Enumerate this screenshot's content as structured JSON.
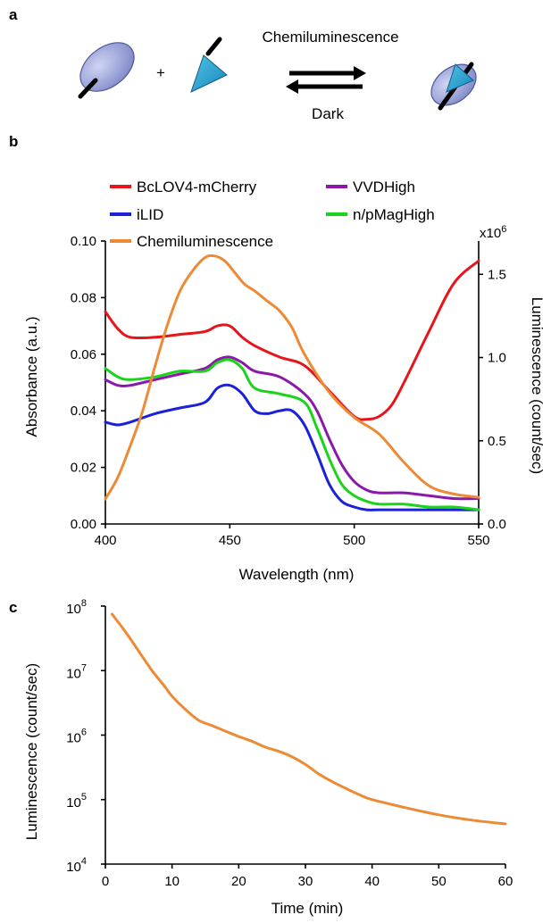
{
  "panel_a": {
    "label": "a",
    "plus": "+",
    "forward_label": "Chemiluminescence",
    "reverse_label": "Dark"
  },
  "chart_data": [
    {
      "panel": "b",
      "type": "line",
      "xlabel": "Wavelength (nm)",
      "ylabel": "Absorbance (a.u.)",
      "y2label": "Luminescence (count/sec)",
      "y2_exponent_label": "x10",
      "y2_exponent_sup": "6",
      "xlim": [
        400,
        550
      ],
      "ylim": [
        0,
        0.1
      ],
      "y2lim": [
        0,
        1.7
      ],
      "xticks": [
        "400",
        "450",
        "500",
        "550"
      ],
      "yticks": [
        "0.00",
        "0.02",
        "0.04",
        "0.06",
        "0.08",
        "0.10"
      ],
      "y2ticks": [
        "0.0",
        "0.5",
        "1.0",
        "1.5"
      ],
      "legend_position": "top",
      "series": [
        {
          "name": "BcLOV4-mCherry",
          "color": "#e8141c",
          "axis": "left",
          "x": [
            400,
            405,
            410,
            420,
            430,
            440,
            445,
            450,
            455,
            460,
            470,
            480,
            490,
            500,
            505,
            510,
            515,
            520,
            530,
            540,
            550
          ],
          "y": [
            0.075,
            0.069,
            0.066,
            0.066,
            0.067,
            0.068,
            0.07,
            0.07,
            0.066,
            0.063,
            0.059,
            0.056,
            0.047,
            0.038,
            0.037,
            0.038,
            0.042,
            0.05,
            0.068,
            0.085,
            0.093
          ]
        },
        {
          "name": "VVDHigh",
          "color": "#8b18a8",
          "axis": "left",
          "x": [
            400,
            405,
            410,
            420,
            430,
            440,
            445,
            450,
            455,
            460,
            470,
            480,
            485,
            490,
            495,
            500,
            505,
            510,
            520,
            530,
            540,
            550
          ],
          "y": [
            0.051,
            0.049,
            0.049,
            0.051,
            0.053,
            0.055,
            0.058,
            0.059,
            0.057,
            0.054,
            0.052,
            0.046,
            0.04,
            0.03,
            0.021,
            0.015,
            0.012,
            0.011,
            0.011,
            0.01,
            0.009,
            0.009
          ]
        },
        {
          "name": "iLID",
          "color": "#1a21d6",
          "axis": "left",
          "x": [
            400,
            405,
            410,
            420,
            430,
            440,
            445,
            450,
            455,
            460,
            465,
            470,
            475,
            480,
            485,
            490,
            495,
            500,
            505,
            510,
            520,
            530,
            540,
            550
          ],
          "y": [
            0.036,
            0.035,
            0.036,
            0.039,
            0.041,
            0.043,
            0.048,
            0.049,
            0.046,
            0.04,
            0.039,
            0.04,
            0.04,
            0.035,
            0.025,
            0.014,
            0.008,
            0.006,
            0.005,
            0.005,
            0.005,
            0.005,
            0.005,
            0.005
          ]
        },
        {
          "name": "n/pMagHigh",
          "color": "#19d419",
          "axis": "left",
          "x": [
            400,
            405,
            410,
            420,
            430,
            440,
            445,
            450,
            455,
            460,
            470,
            480,
            485,
            490,
            495,
            500,
            505,
            510,
            520,
            530,
            540,
            550
          ],
          "y": [
            0.055,
            0.052,
            0.051,
            0.052,
            0.054,
            0.054,
            0.057,
            0.058,
            0.055,
            0.048,
            0.046,
            0.043,
            0.034,
            0.023,
            0.014,
            0.01,
            0.008,
            0.007,
            0.007,
            0.006,
            0.006,
            0.005
          ]
        },
        {
          "name": "Chemiluminescence",
          "color": "#ed8a35",
          "axis": "right",
          "x": [
            400,
            405,
            410,
            415,
            420,
            425,
            430,
            435,
            440,
            444,
            448,
            452,
            456,
            460,
            465,
            470,
            475,
            480,
            490,
            500,
            510,
            520,
            530,
            540,
            550
          ],
          "y": [
            0.15,
            0.28,
            0.47,
            0.68,
            0.95,
            1.2,
            1.4,
            1.52,
            1.6,
            1.61,
            1.58,
            1.51,
            1.44,
            1.4,
            1.34,
            1.28,
            1.18,
            1.02,
            0.79,
            0.64,
            0.54,
            0.37,
            0.23,
            0.18,
            0.16
          ]
        }
      ]
    },
    {
      "panel": "c",
      "type": "line",
      "xlabel": "Time (min)",
      "ylabel": "Luminescence (count/sec)",
      "yscale": "log",
      "xlim": [
        0,
        60
      ],
      "ylim": [
        10000,
        100000000
      ],
      "xticks": [
        "0",
        "10",
        "20",
        "30",
        "40",
        "50",
        "60"
      ],
      "ytick_base": "10",
      "ytick_exponents": [
        "4",
        "5",
        "6",
        "7",
        "8"
      ],
      "series": [
        {
          "name": "",
          "color": "#ed8a35",
          "x": [
            1,
            3,
            5,
            7,
            9,
            10,
            12,
            14,
            16,
            18,
            20,
            22,
            24,
            26,
            28,
            30,
            32,
            34,
            36,
            38,
            40,
            45,
            50,
            55,
            60
          ],
          "y": [
            75000000,
            40000000,
            20000000,
            10000000,
            5500000,
            4000000,
            2500000,
            1700000,
            1400000,
            1150000,
            950000,
            800000,
            650000,
            560000,
            460000,
            350000,
            250000,
            190000,
            150000,
            120000,
            100000,
            75000,
            58000,
            48000,
            42000
          ]
        }
      ]
    }
  ]
}
